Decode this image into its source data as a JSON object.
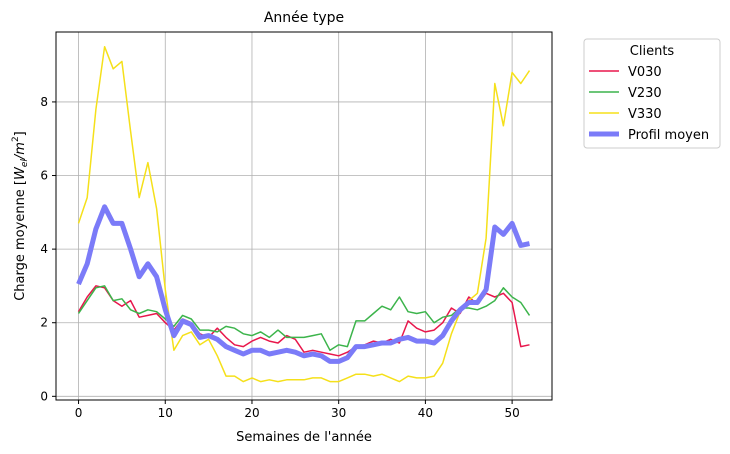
{
  "chart_data": {
    "type": "line",
    "title": "Année type",
    "xlabel": "Semaines de l'année",
    "ylabel_main": "Charge moyenne [",
    "ylabel_symbol": "W",
    "ylabel_sub": "el",
    "ylabel_slash": "/m",
    "ylabel_sup": "2",
    "ylabel_close": "]",
    "xlim": [
      -2.6,
      54.6
    ],
    "ylim": [
      -0.1,
      9.9
    ],
    "xticks": [
      0,
      10,
      20,
      30,
      40,
      50
    ],
    "yticks": [
      0,
      2,
      4,
      6,
      8
    ],
    "grid": true,
    "legend": {
      "title": "Clients",
      "placement": "outside-right"
    },
    "x": [
      0,
      1,
      2,
      3,
      4,
      5,
      6,
      7,
      8,
      9,
      10,
      11,
      12,
      13,
      14,
      15,
      16,
      17,
      18,
      19,
      20,
      21,
      22,
      23,
      24,
      25,
      26,
      27,
      28,
      29,
      30,
      31,
      32,
      33,
      34,
      35,
      36,
      37,
      38,
      39,
      40,
      41,
      42,
      43,
      44,
      45,
      46,
      47,
      48,
      49,
      50,
      51,
      52
    ],
    "series": [
      {
        "name": "V030",
        "color": "#e8174c",
        "width": 1.5,
        "values": [
          2.3,
          2.7,
          3.0,
          2.95,
          2.6,
          2.45,
          2.6,
          2.15,
          2.2,
          2.25,
          2.0,
          1.8,
          2.1,
          2.0,
          1.7,
          1.6,
          1.85,
          1.6,
          1.4,
          1.35,
          1.5,
          1.6,
          1.5,
          1.45,
          1.65,
          1.55,
          1.2,
          1.25,
          1.2,
          1.15,
          1.1,
          1.2,
          1.35,
          1.4,
          1.5,
          1.45,
          1.55,
          1.45,
          2.05,
          1.85,
          1.75,
          1.8,
          2.0,
          2.4,
          2.25,
          2.7,
          2.5,
          2.8,
          2.7,
          2.8,
          2.55,
          1.35,
          1.4
        ]
      },
      {
        "name": "V230",
        "color": "#3cb44b",
        "width": 1.5,
        "values": [
          2.25,
          2.6,
          2.95,
          3.0,
          2.6,
          2.65,
          2.35,
          2.25,
          2.35,
          2.3,
          2.1,
          1.9,
          2.2,
          2.1,
          1.8,
          1.8,
          1.75,
          1.9,
          1.85,
          1.7,
          1.65,
          1.75,
          1.6,
          1.8,
          1.6,
          1.6,
          1.6,
          1.65,
          1.7,
          1.25,
          1.4,
          1.35,
          2.05,
          2.05,
          2.25,
          2.45,
          2.35,
          2.7,
          2.3,
          2.25,
          2.3,
          2.0,
          2.15,
          2.2,
          2.4,
          2.4,
          2.35,
          2.45,
          2.6,
          2.95,
          2.7,
          2.55,
          2.2
        ]
      },
      {
        "name": "V330",
        "color": "#f5e01a",
        "width": 1.5,
        "values": [
          4.7,
          5.4,
          7.8,
          9.5,
          8.9,
          9.1,
          7.2,
          5.4,
          6.35,
          5.1,
          2.9,
          1.25,
          1.65,
          1.75,
          1.4,
          1.55,
          1.1,
          0.55,
          0.55,
          0.4,
          0.5,
          0.4,
          0.45,
          0.4,
          0.45,
          0.45,
          0.45,
          0.5,
          0.5,
          0.4,
          0.4,
          0.5,
          0.6,
          0.6,
          0.55,
          0.6,
          0.5,
          0.4,
          0.55,
          0.5,
          0.5,
          0.55,
          0.9,
          1.7,
          2.3,
          2.6,
          2.8,
          4.3,
          8.5,
          7.35,
          8.8,
          8.5,
          8.85
        ]
      },
      {
        "name": "Profil moyen",
        "color": "#7b7bf8",
        "width": 5,
        "values": [
          3.05,
          3.6,
          4.55,
          5.15,
          4.7,
          4.7,
          4.0,
          3.25,
          3.6,
          3.25,
          2.35,
          1.65,
          2.05,
          1.95,
          1.6,
          1.65,
          1.55,
          1.35,
          1.25,
          1.15,
          1.25,
          1.25,
          1.15,
          1.2,
          1.25,
          1.2,
          1.1,
          1.15,
          1.1,
          0.95,
          0.95,
          1.05,
          1.35,
          1.35,
          1.4,
          1.45,
          1.45,
          1.55,
          1.6,
          1.5,
          1.5,
          1.45,
          1.65,
          2.05,
          2.35,
          2.55,
          2.55,
          2.9,
          4.6,
          4.4,
          4.7,
          4.1,
          4.15
        ]
      }
    ]
  }
}
